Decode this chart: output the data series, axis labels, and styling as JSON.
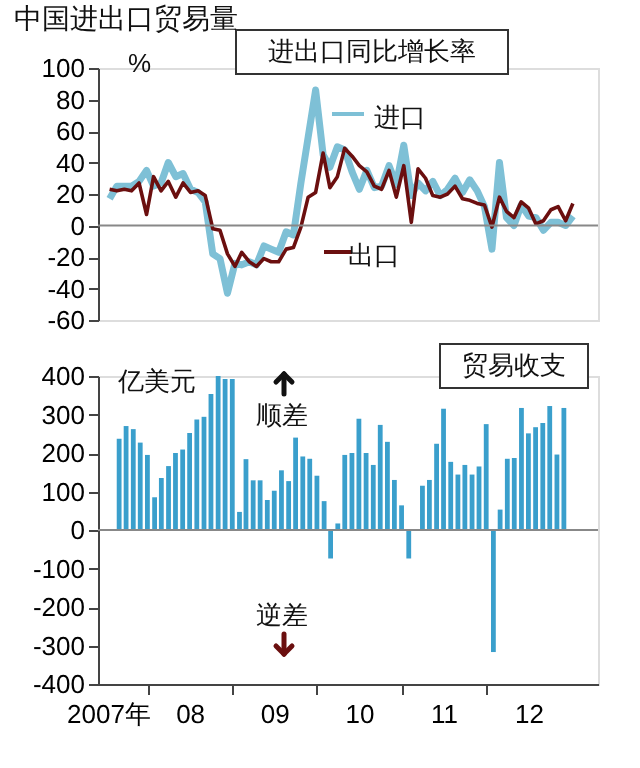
{
  "chart_data": [
    {
      "type": "line",
      "title": "中国进出口贸易量",
      "ylabel": "%",
      "annotations": [
        "进出口同比增长率"
      ],
      "tick_labels": "y",
      "legend": "top",
      "grid": false,
      "x": [
        "2007-09",
        "2007-10",
        "2007-11",
        "2007-12",
        "2008-01",
        "2008-02",
        "2008-03",
        "2008-04",
        "2008-05",
        "2008-06",
        "2008-07",
        "2008-08",
        "2008-09",
        "2008-10",
        "2008-11",
        "2008-12",
        "2009-01",
        "2009-02",
        "2009-03",
        "2009-04",
        "2009-05",
        "2009-06",
        "2009-07",
        "2009-08",
        "2009-09",
        "2009-10",
        "2009-11",
        "2009-12",
        "2010-01",
        "2010-02",
        "2010-03",
        "2010-04",
        "2010-05",
        "2010-06",
        "2010-07",
        "2010-08",
        "2010-09",
        "2010-10",
        "2010-11",
        "2010-12",
        "2011-01",
        "2011-02",
        "2011-03",
        "2011-04",
        "2011-05",
        "2011-06",
        "2011-07",
        "2011-08",
        "2011-09",
        "2011-10",
        "2011-11",
        "2011-12",
        "2012-01",
        "2012-02",
        "2012-03",
        "2012-04",
        "2012-05",
        "2012-06",
        "2012-07",
        "2012-08",
        "2012-09",
        "2012-10",
        "2012-11",
        "2012-12"
      ],
      "xlim": [
        "2007-07-15",
        "2013-03-15"
      ],
      "ylim": [
        -60,
        100
      ],
      "yticks": [
        -60,
        -40,
        -20,
        0,
        20,
        40,
        60,
        80,
        100
      ],
      "ref_lines": [
        {
          "axis": "y",
          "value": 0,
          "color": "#888888"
        }
      ],
      "series": [
        {
          "name": "进口",
          "color": "#7ec0d6",
          "values": [
            17,
            25,
            25,
            25,
            28,
            35,
            25,
            27,
            40,
            31,
            33,
            23,
            21,
            15,
            -18,
            -21,
            -43,
            -24,
            -25,
            -23,
            -25,
            -13,
            -15,
            -17,
            -4,
            -6,
            27,
            56,
            86,
            45,
            37,
            50,
            48,
            34,
            23,
            35,
            24,
            25,
            38,
            26,
            51,
            19,
            27,
            22,
            28,
            19,
            23,
            30,
            21,
            29,
            22,
            12,
            -15,
            40,
            5,
            0,
            13,
            6,
            5,
            -3,
            2,
            2,
            0,
            6
          ]
        },
        {
          "name": "出口",
          "color": "#6b0f0f",
          "values": [
            23,
            22,
            23,
            22,
            27,
            7,
            31,
            22,
            28,
            18,
            27,
            21,
            22,
            19,
            -2,
            -3,
            -18,
            -26,
            -17,
            -23,
            -26,
            -21,
            -23,
            -23,
            -15,
            -14,
            -1,
            18,
            21,
            46,
            24,
            31,
            49,
            44,
            38,
            34,
            25,
            23,
            35,
            18,
            38,
            2,
            36,
            30,
            19,
            18,
            20,
            25,
            17,
            16,
            14,
            13,
            -1,
            18,
            9,
            5,
            15,
            11,
            1,
            3,
            10,
            12,
            3,
            14
          ]
        }
      ]
    },
    {
      "type": "bar",
      "ylabel": "亿美元",
      "annotations": [
        "贸易收支",
        "顺差",
        "逆差"
      ],
      "grid": false,
      "x": [
        "2007-09",
        "2007-10",
        "2007-11",
        "2007-12",
        "2008-01",
        "2008-02",
        "2008-03",
        "2008-04",
        "2008-05",
        "2008-06",
        "2008-07",
        "2008-08",
        "2008-09",
        "2008-10",
        "2008-11",
        "2008-12",
        "2009-01",
        "2009-02",
        "2009-03",
        "2009-04",
        "2009-05",
        "2009-06",
        "2009-07",
        "2009-08",
        "2009-09",
        "2009-10",
        "2009-11",
        "2009-12",
        "2010-01",
        "2010-02",
        "2010-03",
        "2010-04",
        "2010-05",
        "2010-06",
        "2010-07",
        "2010-08",
        "2010-09",
        "2010-10",
        "2010-11",
        "2010-12",
        "2011-01",
        "2011-02",
        "2011-03",
        "2011-04",
        "2011-05",
        "2011-06",
        "2011-07",
        "2011-08",
        "2011-09",
        "2011-10",
        "2011-11",
        "2011-12",
        "2012-01",
        "2012-02",
        "2012-03",
        "2012-04",
        "2012-05",
        "2012-06",
        "2012-07",
        "2012-08",
        "2012-09",
        "2012-10",
        "2012-11",
        "2012-12"
      ],
      "xlim": [
        "2007-07-15",
        "2013-03-15"
      ],
      "xticks": [
        {
          "value": "2007-07-15",
          "label": "2007年"
        },
        {
          "value": "2008-01-01",
          "label": null
        },
        {
          "value": "2008-07-01",
          "label": "08"
        },
        {
          "value": "2009-01-01",
          "label": null
        },
        {
          "value": "2009-07-01",
          "label": "09"
        },
        {
          "value": "2010-01-01",
          "label": null
        },
        {
          "value": "2010-07-01",
          "label": "10"
        },
        {
          "value": "2011-01-01",
          "label": null
        },
        {
          "value": "2011-07-01",
          "label": "11"
        },
        {
          "value": "2012-01-01",
          "label": null
        },
        {
          "value": "2012-07-01",
          "label": "12"
        }
      ],
      "ylim": [
        -400,
        400
      ],
      "yticks": [
        -400,
        -300,
        -200,
        -100,
        0,
        100,
        200,
        300,
        400
      ],
      "ref_lines": [
        {
          "axis": "y",
          "value": 0,
          "color": "#888888"
        }
      ],
      "color": "#3a9fcc",
      "values": [
        237,
        270,
        262,
        227,
        195,
        85,
        135,
        166,
        200,
        209,
        252,
        287,
        294,
        353,
        400,
        392,
        392,
        47,
        184,
        129,
        129,
        78,
        102,
        155,
        127,
        240,
        191,
        185,
        141,
        75,
        -74,
        17,
        195,
        200,
        289,
        200,
        169,
        273,
        229,
        130,
        64,
        -74,
        1,
        115,
        130,
        224,
        315,
        177,
        144,
        169,
        144,
        165,
        275,
        -317,
        53,
        185,
        187,
        317,
        251,
        267,
        278,
        322,
        196,
        317
      ]
    }
  ]
}
